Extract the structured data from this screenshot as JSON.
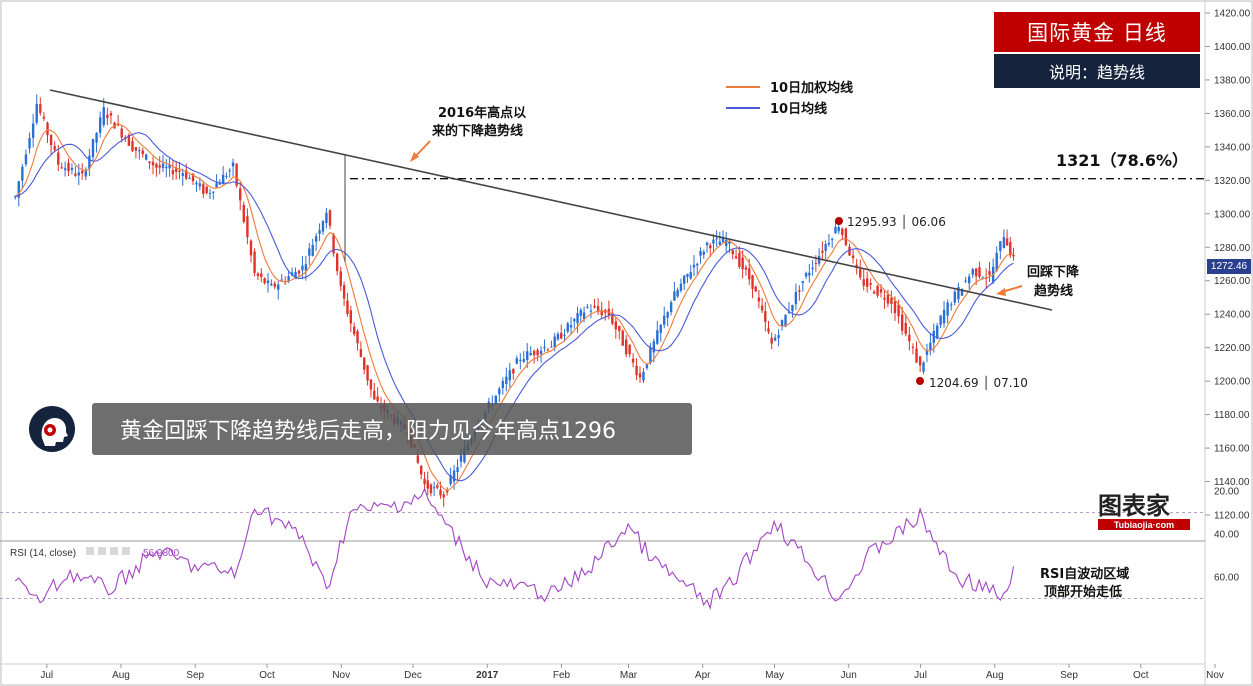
{
  "title": "国际黄金  日线",
  "subtitle": "说明：趋势线",
  "headline": "黄金回踩下降趋势线后走高，阻力见今年高点1296",
  "brand": {
    "name": "图表家",
    "site": "Tubiaojia·com"
  },
  "legend": [
    {
      "label": "10日加权均线",
      "color": "#f07a3a"
    },
    {
      "label": "10日均线",
      "color": "#4a5ad8"
    }
  ],
  "annotations": {
    "trendline_note_line1": "2016年高点以",
    "trendline_note_line2": "来的下降趋势线",
    "fib_level": "1321（78.6%）",
    "high_point": "1295.93 │ 06.06",
    "low_point": "1204.69 │ 07.10",
    "pullback_line1": "回踩下降",
    "pullback_line2": "趋势线",
    "rsi_note_line1": "RSI自波动区域",
    "rsi_note_line2": "顶部开始走低"
  },
  "last_price": "1272.46",
  "rsi_label": "RSI (14, close)",
  "rsi_value": "56.9800",
  "colors": {
    "up": "#2a6fd6",
    "down": "#e0322a",
    "wma": "#f07a3a",
    "ma": "#4a5ad8",
    "trend": "#444444",
    "rsi": "#a144c4",
    "rsi_band": "#f3e6fb",
    "marker": "#b80000"
  },
  "chart_data": [
    {
      "type": "candlestick",
      "x_ticks": [
        "Jul",
        "Aug",
        "Sep",
        "Oct",
        "Nov",
        "Dec",
        "2017",
        "Feb",
        "Mar",
        "Apr",
        "May",
        "Jun",
        "Jul",
        "Aug",
        "Sep",
        "Oct",
        "Nov"
      ],
      "y_ticks": [
        1120,
        1140,
        1160,
        1180,
        1200,
        1220,
        1240,
        1260,
        1280,
        1300,
        1320,
        1340,
        1360,
        1380,
        1400,
        1420
      ],
      "ylim": [
        1114,
        1424
      ],
      "key_levels": {
        "fib_78_6": 1321,
        "high": 1295.93,
        "low": 1204.69
      },
      "close_path": [
        {
          "d": "2016-06-27",
          "v": 1310
        },
        {
          "d": "2016-07-06",
          "v": 1366
        },
        {
          "d": "2016-07-15",
          "v": 1330
        },
        {
          "d": "2016-07-25",
          "v": 1322
        },
        {
          "d": "2016-08-03",
          "v": 1362
        },
        {
          "d": "2016-08-15",
          "v": 1340
        },
        {
          "d": "2016-08-25",
          "v": 1328
        },
        {
          "d": "2016-09-05",
          "v": 1325
        },
        {
          "d": "2016-09-15",
          "v": 1312
        },
        {
          "d": "2016-09-26",
          "v": 1328
        },
        {
          "d": "2016-10-05",
          "v": 1264
        },
        {
          "d": "2016-10-12",
          "v": 1256
        },
        {
          "d": "2016-10-25",
          "v": 1268
        },
        {
          "d": "2016-11-04",
          "v": 1302
        },
        {
          "d": "2016-11-10",
          "v": 1255
        },
        {
          "d": "2016-11-24",
          "v": 1188
        },
        {
          "d": "2016-12-08",
          "v": 1170
        },
        {
          "d": "2016-12-15",
          "v": 1138
        },
        {
          "d": "2016-12-23",
          "v": 1132
        },
        {
          "d": "2017-01-05",
          "v": 1172
        },
        {
          "d": "2017-01-24",
          "v": 1214
        },
        {
          "d": "2017-02-06",
          "v": 1222
        },
        {
          "d": "2017-02-21",
          "v": 1244
        },
        {
          "d": "2017-03-02",
          "v": 1240
        },
        {
          "d": "2017-03-15",
          "v": 1202
        },
        {
          "d": "2017-03-28",
          "v": 1248
        },
        {
          "d": "2017-04-12",
          "v": 1282
        },
        {
          "d": "2017-04-20",
          "v": 1284
        },
        {
          "d": "2017-05-01",
          "v": 1258
        },
        {
          "d": "2017-05-09",
          "v": 1222
        },
        {
          "d": "2017-05-22",
          "v": 1260
        },
        {
          "d": "2017-06-06",
          "v": 1294
        },
        {
          "d": "2017-06-15",
          "v": 1260
        },
        {
          "d": "2017-06-28",
          "v": 1248
        },
        {
          "d": "2017-07-10",
          "v": 1208
        },
        {
          "d": "2017-07-20",
          "v": 1242
        },
        {
          "d": "2017-08-01",
          "v": 1266
        },
        {
          "d": "2017-08-08",
          "v": 1262
        },
        {
          "d": "2017-08-14",
          "v": 1288
        },
        {
          "d": "2017-08-18",
          "v": 1272
        }
      ]
    },
    {
      "type": "line",
      "name": "RSI",
      "y_ticks": [
        20,
        40,
        60
      ],
      "band": [
        30,
        70
      ],
      "path": [
        {
          "d": "2016-06-27",
          "v": 60
        },
        {
          "d": "2016-07-06",
          "v": 72
        },
        {
          "d": "2016-07-20",
          "v": 58
        },
        {
          "d": "2016-08-05",
          "v": 66
        },
        {
          "d": "2016-08-25",
          "v": 48
        },
        {
          "d": "2016-09-10",
          "v": 55
        },
        {
          "d": "2016-09-28",
          "v": 58
        },
        {
          "d": "2016-10-05",
          "v": 26
        },
        {
          "d": "2016-10-25",
          "v": 42
        },
        {
          "d": "2016-11-04",
          "v": 66
        },
        {
          "d": "2016-11-14",
          "v": 30
        },
        {
          "d": "2016-12-01",
          "v": 27
        },
        {
          "d": "2016-12-15",
          "v": 22
        },
        {
          "d": "2017-01-10",
          "v": 62
        },
        {
          "d": "2017-02-06",
          "v": 68
        },
        {
          "d": "2017-02-20",
          "v": 58
        },
        {
          "d": "2017-03-10",
          "v": 36
        },
        {
          "d": "2017-03-20",
          "v": 52
        },
        {
          "d": "2017-04-12",
          "v": 72
        },
        {
          "d": "2017-04-20",
          "v": 66
        },
        {
          "d": "2017-05-10",
          "v": 34
        },
        {
          "d": "2017-06-06",
          "v": 70
        },
        {
          "d": "2017-06-20",
          "v": 48
        },
        {
          "d": "2017-07-10",
          "v": 32
        },
        {
          "d": "2017-07-25",
          "v": 60
        },
        {
          "d": "2017-08-05",
          "v": 64
        },
        {
          "d": "2017-08-14",
          "v": 71
        },
        {
          "d": "2017-08-18",
          "v": 57
        }
      ]
    }
  ]
}
